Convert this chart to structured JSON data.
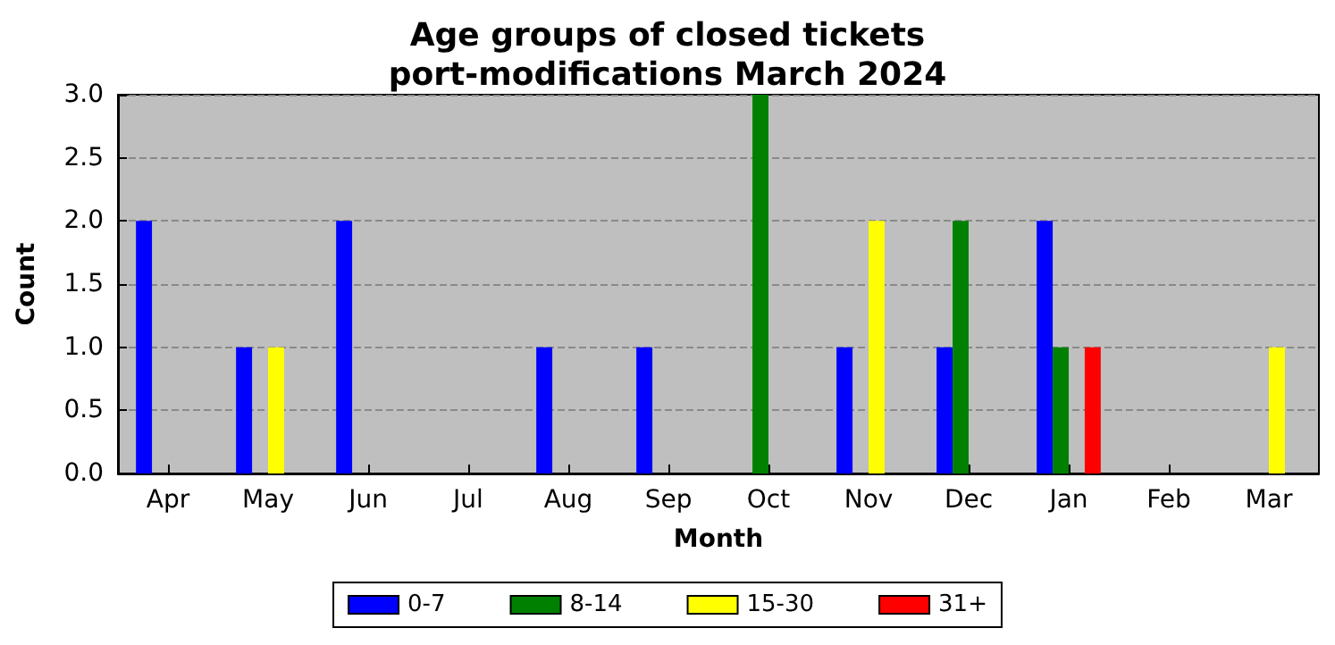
{
  "chart_data": {
    "type": "bar",
    "title": "Age groups of closed tickets",
    "subtitle": "port-modifications March 2024",
    "xlabel": "Month",
    "ylabel": "Count",
    "categories": [
      "Apr",
      "May",
      "Jun",
      "Jul",
      "Aug",
      "Sep",
      "Oct",
      "Nov",
      "Dec",
      "Jan",
      "Feb",
      "Mar"
    ],
    "series": [
      {
        "name": "0-7",
        "color": "#0000ff",
        "values": [
          2,
          1,
          2,
          0,
          1,
          1,
          0,
          1,
          1,
          2,
          0,
          0
        ]
      },
      {
        "name": "8-14",
        "color": "#008000",
        "values": [
          0,
          0,
          0,
          0,
          0,
          0,
          3,
          0,
          2,
          1,
          0,
          0
        ]
      },
      {
        "name": "15-30",
        "color": "#ffff00",
        "values": [
          0,
          1,
          0,
          0,
          0,
          0,
          0,
          2,
          0,
          0,
          0,
          1
        ]
      },
      {
        "name": "31+",
        "color": "#ff0000",
        "values": [
          0,
          0,
          0,
          0,
          0,
          0,
          0,
          0,
          0,
          1,
          0,
          0
        ]
      }
    ],
    "ylim": [
      0,
      3
    ],
    "yticks": [
      {
        "value": 0,
        "label": "0.0"
      },
      {
        "value": 0.5,
        "label": "0.5"
      },
      {
        "value": 1,
        "label": "1.0"
      },
      {
        "value": 1.5,
        "label": "1.5"
      },
      {
        "value": 2,
        "label": "2.0"
      },
      {
        "value": 2.5,
        "label": "2.5"
      },
      {
        "value": 3,
        "label": "3.0"
      }
    ],
    "grid": "y",
    "legend": "bottom"
  }
}
